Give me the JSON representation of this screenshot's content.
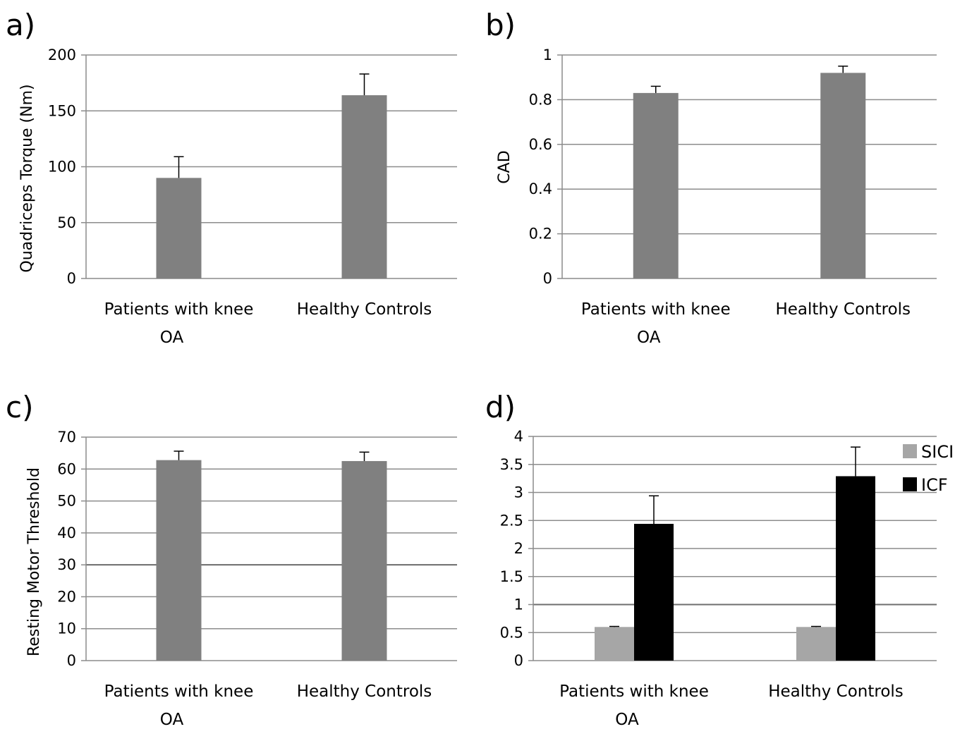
{
  "chart_data": [
    {
      "panel": "a)",
      "type": "bar",
      "categories": [
        "Patients with knee OA",
        "Healthy Controls"
      ],
      "category_lines": [
        [
          "Patients with knee",
          "OA"
        ],
        [
          "Healthy Controls"
        ]
      ],
      "series": [
        {
          "values": [
            90,
            164
          ],
          "errors": [
            19,
            19
          ],
          "color": "#808080"
        }
      ],
      "ylabel": "Quadriceps Torque (Nm)",
      "ylim": [
        0,
        200
      ],
      "yticks": [
        0,
        50,
        100,
        150,
        200
      ],
      "ytick_labels": [
        "0",
        "50",
        "100",
        "150",
        "200"
      ],
      "grid": true
    },
    {
      "panel": "b)",
      "type": "bar",
      "categories": [
        "Patients with knee OA",
        "Healthy Controls"
      ],
      "category_lines": [
        [
          "Patients with knee",
          "OA"
        ],
        [
          "Healthy Controls"
        ]
      ],
      "series": [
        {
          "values": [
            0.83,
            0.92
          ],
          "errors": [
            0.03,
            0.03
          ],
          "color": "#808080"
        }
      ],
      "ylabel": "CAD",
      "ylim": [
        0,
        1
      ],
      "yticks": [
        0,
        0.2,
        0.4,
        0.6,
        0.8,
        1
      ],
      "ytick_labels": [
        "0",
        "0.2",
        "0.4",
        "0.6",
        "0.8",
        "1"
      ],
      "grid": true
    },
    {
      "panel": "c)",
      "type": "bar",
      "categories": [
        "Patients with knee OA",
        "Healthy Controls"
      ],
      "category_lines": [
        [
          "Patients with knee",
          "OA"
        ],
        [
          "Healthy Controls"
        ]
      ],
      "series": [
        {
          "values": [
            62.8,
            62.5
          ],
          "errors": [
            2.8,
            2.8
          ],
          "color": "#808080"
        }
      ],
      "ylabel": "Resting Motor Threshold",
      "ylim": [
        0,
        70
      ],
      "yticks": [
        0,
        10,
        20,
        30,
        40,
        50,
        60,
        70
      ],
      "ytick_labels": [
        "0",
        "10",
        "20",
        "30",
        "40",
        "50",
        "60",
        "70"
      ],
      "reference_line": 30,
      "grid": true
    },
    {
      "panel": "d)",
      "type": "bar",
      "categories": [
        "Patients with knee OA",
        "Healthy Controls"
      ],
      "category_lines": [
        [
          "Patients with knee",
          "OA"
        ],
        [
          "Healthy Controls"
        ]
      ],
      "series": [
        {
          "name": "SICI",
          "values": [
            0.6,
            0.6
          ],
          "errors": [
            0.01,
            0.01
          ],
          "color": "#a6a6a6"
        },
        {
          "name": "ICF",
          "values": [
            2.44,
            3.29
          ],
          "errors": [
            0.5,
            0.52
          ],
          "color": "#000000"
        }
      ],
      "ylabel": "",
      "ylim": [
        0,
        4
      ],
      "yticks": [
        0,
        0.5,
        1,
        1.5,
        2,
        2.5,
        3,
        3.5,
        4
      ],
      "ytick_labels": [
        "0",
        "0.5",
        "1",
        "1.5",
        "2",
        "2.5",
        "3",
        "3.5",
        "4"
      ],
      "reference_line": 1,
      "legend": "right",
      "grid": true
    }
  ]
}
